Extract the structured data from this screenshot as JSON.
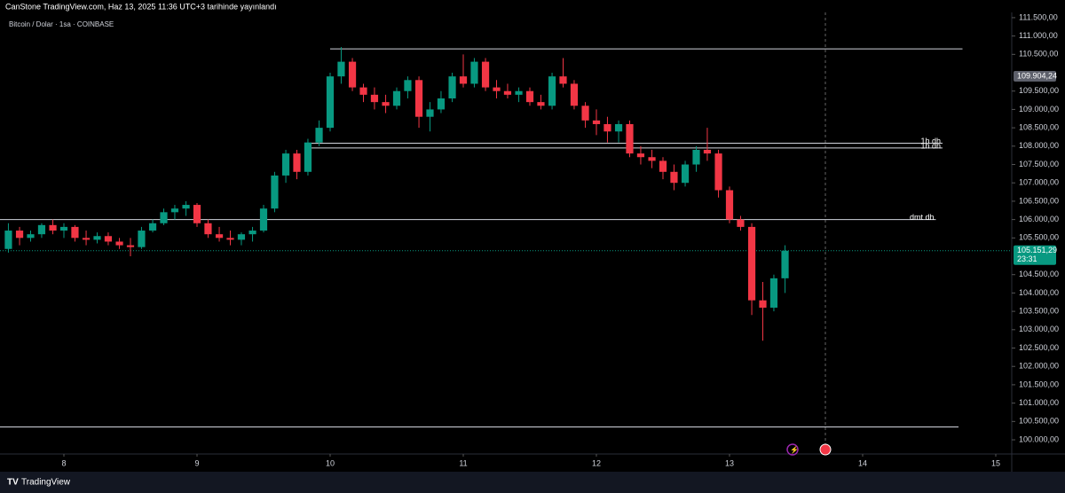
{
  "header": {
    "title": "CanStone TradingView.com, Haz 13, 2025 11:36 UTC+3 tarihinde yayınlandı",
    "footer": "TradingView"
  },
  "chart_data": {
    "type": "candlestick",
    "subtitle": "Bitcoin / Dolar · 1sa · COINBASE",
    "up_color": "#089981",
    "down_color": "#f23645",
    "x": [
      7.583,
      7.667,
      7.75,
      7.833,
      7.917,
      8.0,
      8.083,
      8.167,
      8.25,
      8.333,
      8.417,
      8.5,
      8.583,
      8.667,
      8.75,
      8.833,
      8.917,
      9.0,
      9.083,
      9.167,
      9.25,
      9.333,
      9.417,
      9.5,
      9.583,
      9.667,
      9.75,
      9.833,
      9.917,
      10.0,
      10.083,
      10.167,
      10.25,
      10.333,
      10.417,
      10.5,
      10.583,
      10.667,
      10.75,
      10.833,
      10.917,
      11.0,
      11.083,
      11.167,
      11.25,
      11.333,
      11.417,
      11.5,
      11.583,
      11.667,
      11.75,
      11.833,
      11.917,
      12.0,
      12.083,
      12.167,
      12.25,
      12.333,
      12.417,
      12.5,
      12.583,
      12.667,
      12.75,
      12.833,
      12.917,
      13.0,
      13.083,
      13.167,
      13.25,
      13.333,
      13.417
    ],
    "open": [
      105200,
      105700,
      105500,
      105600,
      105850,
      105700,
      105800,
      105500,
      105450,
      105550,
      105400,
      105300,
      105250,
      105700,
      105900,
      106200,
      106300,
      106400,
      105900,
      105600,
      105500,
      105450,
      105600,
      105700,
      106300,
      107200,
      107800,
      107300,
      108100,
      108500,
      109900,
      110300,
      109600,
      109400,
      109200,
      109100,
      109500,
      109800,
      108800,
      109000,
      109300,
      109900,
      109700,
      110300,
      109600,
      109500,
      109400,
      109500,
      109200,
      109100,
      109900,
      109700,
      109100,
      108700,
      108600,
      108400,
      108600,
      107800,
      107700,
      107600,
      107300,
      107000,
      107500,
      107900,
      107800,
      106800,
      106000,
      105800,
      103800,
      103600,
      104400
    ],
    "high": [
      105900,
      105800,
      105700,
      105900,
      106000,
      105900,
      105850,
      105700,
      105650,
      105650,
      105500,
      105500,
      105800,
      106000,
      106300,
      106400,
      106500,
      106450,
      106000,
      105800,
      105700,
      105650,
      105800,
      106400,
      107300,
      107900,
      107900,
      108200,
      108700,
      110000,
      110700,
      110400,
      109700,
      109600,
      109400,
      109600,
      109900,
      109900,
      109200,
      109500,
      110000,
      110500,
      110400,
      110400,
      109800,
      109700,
      109600,
      109600,
      109400,
      110000,
      110400,
      109800,
      109200,
      109000,
      108800,
      108700,
      108700,
      108000,
      107900,
      107700,
      107500,
      107600,
      108000,
      108500,
      107900,
      106900,
      106100,
      105900,
      104300,
      104500,
      105300
    ],
    "low": [
      105100,
      105300,
      105400,
      105500,
      105600,
      105500,
      105400,
      105300,
      105350,
      105300,
      105200,
      105000,
      105200,
      105650,
      105850,
      106000,
      106100,
      105800,
      105500,
      105400,
      105300,
      105300,
      105400,
      105650,
      106200,
      107000,
      107100,
      107200,
      108000,
      108400,
      109700,
      109500,
      109200,
      109000,
      108900,
      109000,
      109300,
      108500,
      108400,
      108900,
      109200,
      109600,
      109600,
      109500,
      109300,
      109300,
      109200,
      109100,
      109000,
      109000,
      109600,
      109000,
      108500,
      108300,
      108100,
      108100,
      107700,
      107500,
      107400,
      107100,
      106800,
      106900,
      107300,
      107600,
      106600,
      105900,
      105700,
      103400,
      102700,
      103500,
      104000
    ],
    "close": [
      105700,
      105500,
      105600,
      105850,
      105700,
      105800,
      105500,
      105450,
      105550,
      105400,
      105300,
      105250,
      105700,
      105900,
      106200,
      106300,
      106400,
      105900,
      105600,
      105500,
      105450,
      105600,
      105700,
      106300,
      107200,
      107800,
      107300,
      108100,
      108500,
      109900,
      110300,
      109600,
      109400,
      109200,
      109100,
      109500,
      109800,
      108800,
      109000,
      109300,
      109900,
      109700,
      110300,
      109600,
      109500,
      109400,
      109500,
      109200,
      109100,
      109900,
      109700,
      109100,
      108700,
      108600,
      108400,
      108600,
      107800,
      107700,
      107600,
      107300,
      107000,
      107500,
      107900,
      107800,
      106800,
      106000,
      105800,
      103800,
      103600,
      104400,
      105151.29
    ],
    "xlim": [
      7.52,
      15.12
    ],
    "xticks": [
      8,
      9,
      10,
      11,
      12,
      13,
      14,
      15
    ],
    "ylim": [
      99614,
      111643
    ],
    "yticks": [
      {
        "value": 100000,
        "label": "100.000,00"
      },
      {
        "value": 100500,
        "label": "100.500,00"
      },
      {
        "value": 101000,
        "label": "101.000,00"
      },
      {
        "value": 101500,
        "label": "101.500,00"
      },
      {
        "value": 102000,
        "label": "102.000,00"
      },
      {
        "value": 102500,
        "label": "102.500,00"
      },
      {
        "value": 103000,
        "label": "103.000,00"
      },
      {
        "value": 103500,
        "label": "103.500,00"
      },
      {
        "value": 104000,
        "label": "104.000,00"
      },
      {
        "value": 104500,
        "label": "104.500,00"
      },
      {
        "value": 105500,
        "label": "105.500,00"
      },
      {
        "value": 106000,
        "label": "106.000,00"
      },
      {
        "value": 106500,
        "label": "106.500,00"
      },
      {
        "value": 107000,
        "label": "107.000,00"
      },
      {
        "value": 107500,
        "label": "107.500,00"
      },
      {
        "value": 108000,
        "label": "108.000,00"
      },
      {
        "value": 108500,
        "label": "108.500,00"
      },
      {
        "value": 109000,
        "label": "109.000,00"
      },
      {
        "value": 109500,
        "label": "109.500,00"
      },
      {
        "value": 110500,
        "label": "110.500,00"
      },
      {
        "value": 111000,
        "label": "111.000,00"
      },
      {
        "value": 111500,
        "label": "111.500,00"
      }
    ],
    "levels": [
      {
        "value": 110650,
        "x": [
          10.0,
          14.75
        ]
      },
      {
        "value": 108080,
        "label": "1h dh",
        "x": [
          9.83,
          14.6
        ]
      },
      {
        "value": 107950,
        "label": "1h dh",
        "x": [
          9.83,
          14.6
        ]
      },
      {
        "value": 106000,
        "label": "dmt dh",
        "x": [
          7.52,
          14.55
        ]
      },
      {
        "value": 100350,
        "x": [
          7.52,
          14.72
        ]
      }
    ],
    "price_labels": [
      {
        "value": 109904.24,
        "label": "109.904,24",
        "color": "#5d606b"
      },
      {
        "value": 105151.29,
        "label": "105.151,29",
        "time": "23:31",
        "color": "#089981"
      }
    ]
  }
}
